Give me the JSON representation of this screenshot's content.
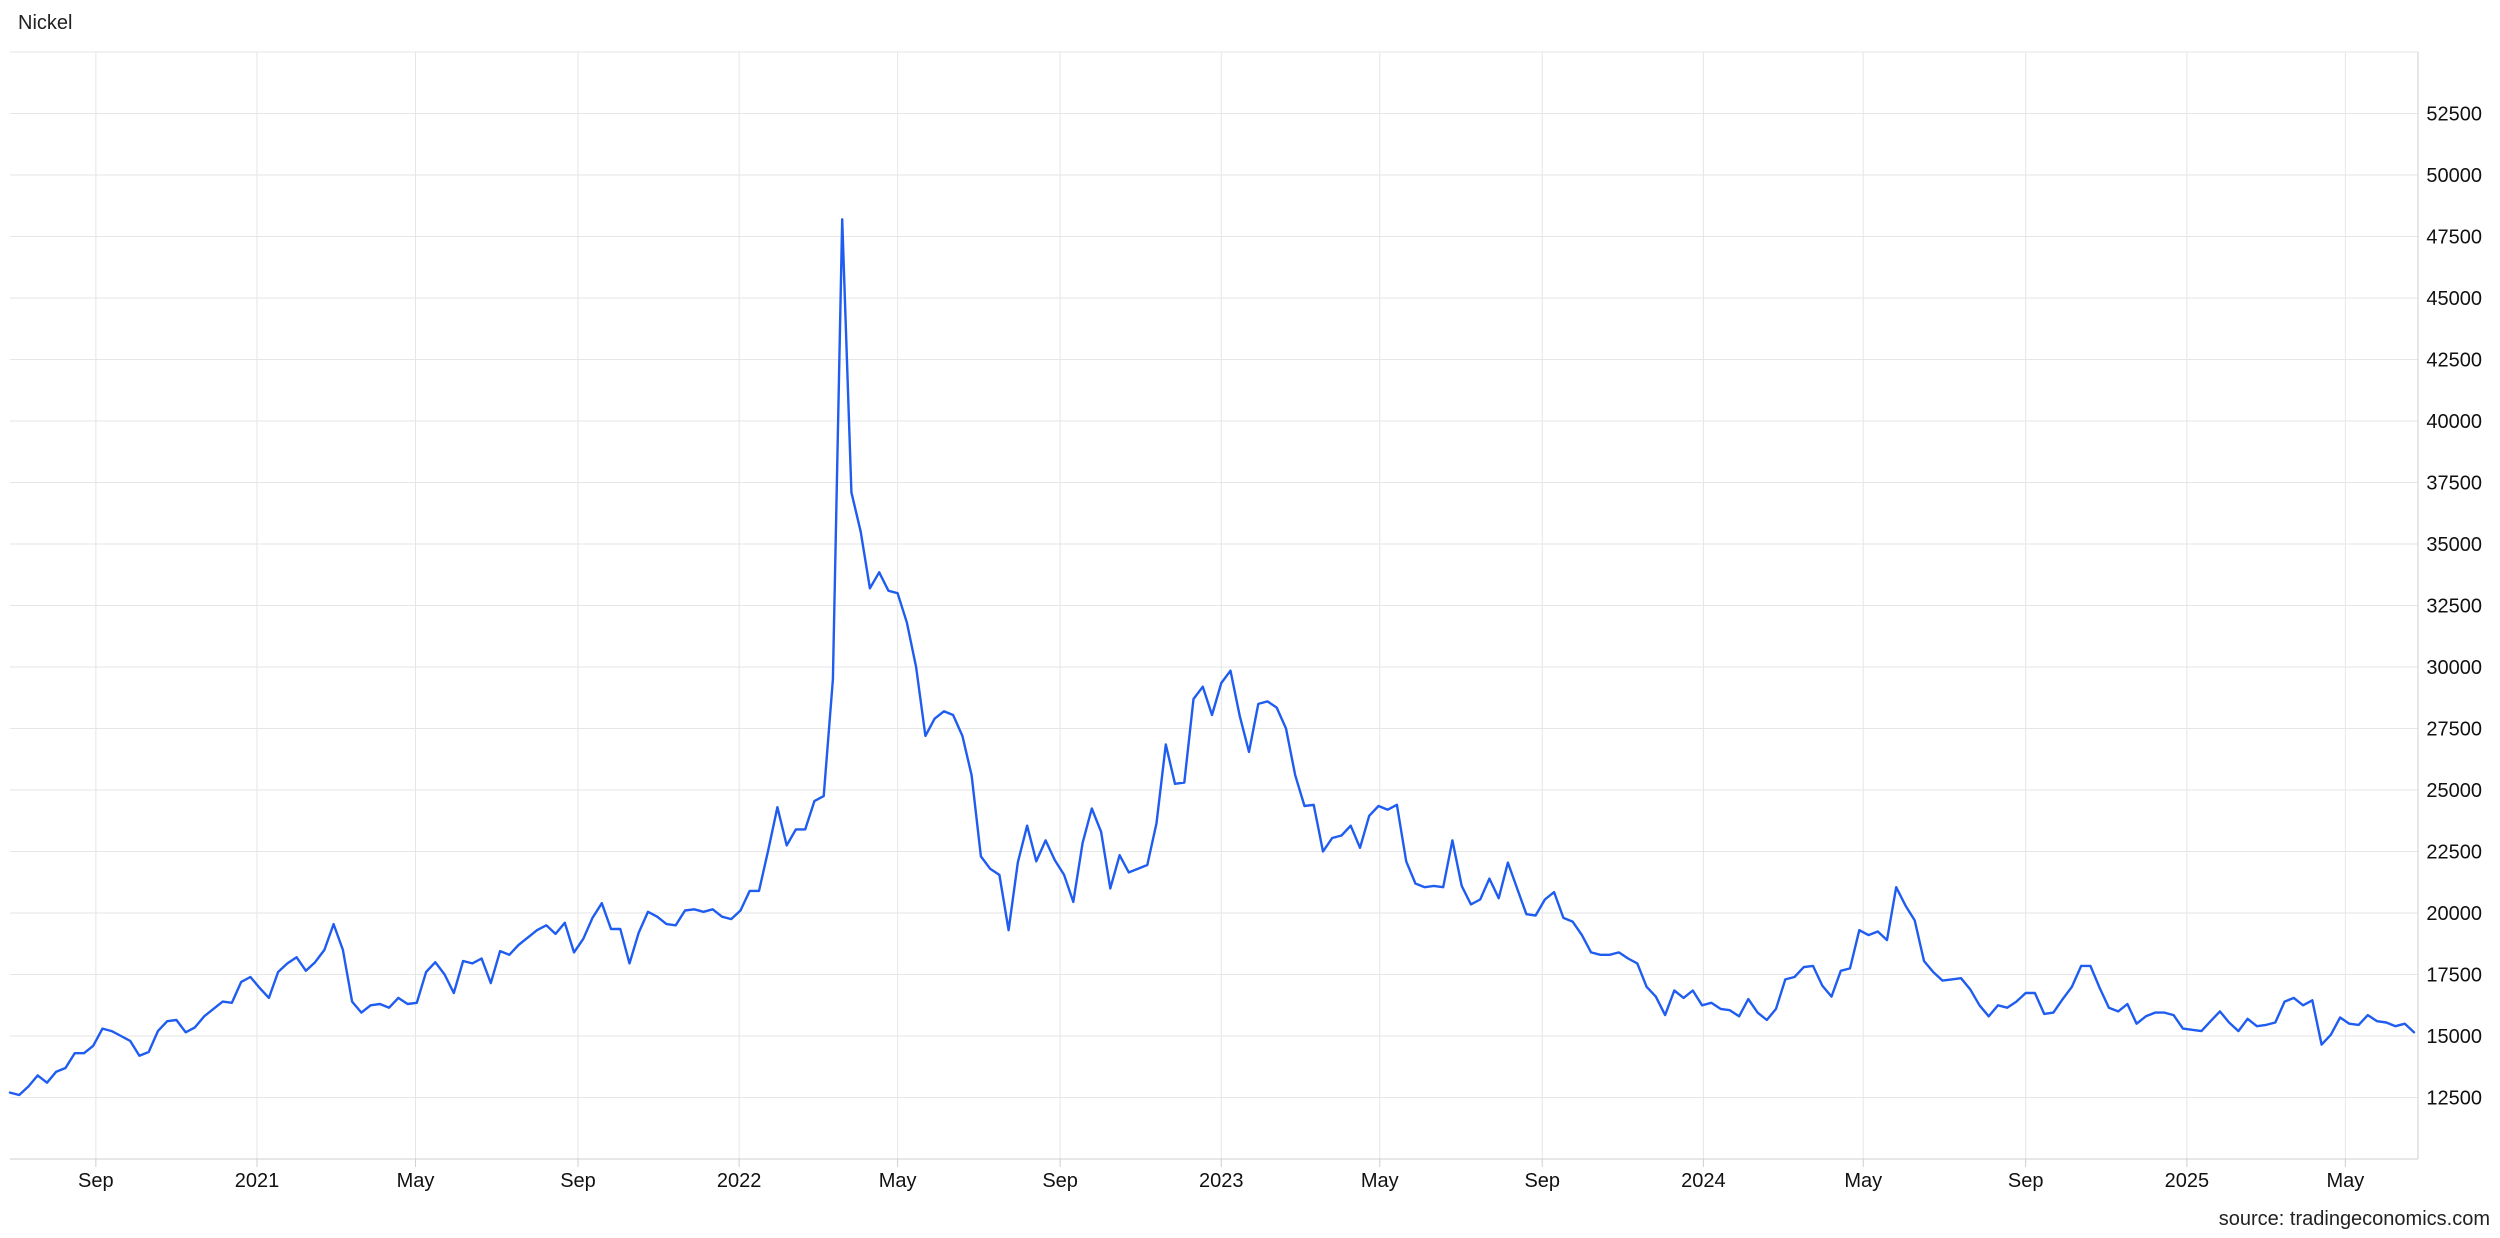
{
  "title": "Nickel",
  "source": "source: tradingeconomics.com",
  "colors": {
    "line": "#1f5cf0",
    "grid": "#e6e6e6",
    "axis": "#cfcfcf"
  },
  "chart_data": {
    "type": "line",
    "title": "Nickel",
    "xlabel": "",
    "ylabel": "",
    "x_range": [
      "2020-06-28",
      "2025-06-25"
    ],
    "ylim": [
      10000,
      55000
    ],
    "grid": true,
    "y_axis_side": "right",
    "y_ticks": [
      12500,
      15000,
      17500,
      20000,
      22500,
      25000,
      27500,
      30000,
      32500,
      35000,
      37500,
      40000,
      42500,
      45000,
      47500,
      50000,
      52500
    ],
    "x_ticks": [
      {
        "date": "2020-09-01",
        "label": "Sep"
      },
      {
        "date": "2021-01-01",
        "label": "2021"
      },
      {
        "date": "2021-05-01",
        "label": "May"
      },
      {
        "date": "2021-09-01",
        "label": "Sep"
      },
      {
        "date": "2022-01-01",
        "label": "2022"
      },
      {
        "date": "2022-05-01",
        "label": "May"
      },
      {
        "date": "2022-09-01",
        "label": "Sep"
      },
      {
        "date": "2023-01-01",
        "label": "2023"
      },
      {
        "date": "2023-05-01",
        "label": "May"
      },
      {
        "date": "2023-09-01",
        "label": "Sep"
      },
      {
        "date": "2024-01-01",
        "label": "2024"
      },
      {
        "date": "2024-05-01",
        "label": "May"
      },
      {
        "date": "2024-09-01",
        "label": "Sep"
      },
      {
        "date": "2025-01-01",
        "label": "2025"
      },
      {
        "date": "2025-05-01",
        "label": "May"
      }
    ],
    "series": [
      {
        "name": "",
        "x": [
          "2020-06-28",
          "2020-07-05",
          "2020-07-12",
          "2020-07-19",
          "2020-07-26",
          "2020-08-02",
          "2020-08-09",
          "2020-08-16",
          "2020-08-23",
          "2020-08-30",
          "2020-09-06",
          "2020-09-13",
          "2020-09-20",
          "2020-09-27",
          "2020-10-04",
          "2020-10-11",
          "2020-10-18",
          "2020-10-25",
          "2020-11-01",
          "2020-11-08",
          "2020-11-15",
          "2020-11-22",
          "2020-11-29",
          "2020-12-06",
          "2020-12-13",
          "2020-12-20",
          "2020-12-27",
          "2021-01-03",
          "2021-01-10",
          "2021-01-17",
          "2021-01-24",
          "2021-01-31",
          "2021-02-07",
          "2021-02-14",
          "2021-02-21",
          "2021-02-28",
          "2021-03-07",
          "2021-03-14",
          "2021-03-21",
          "2021-03-28",
          "2021-04-04",
          "2021-04-11",
          "2021-04-18",
          "2021-04-25",
          "2021-05-02",
          "2021-05-09",
          "2021-05-16",
          "2021-05-23",
          "2021-05-30",
          "2021-06-06",
          "2021-06-13",
          "2021-06-20",
          "2021-06-27",
          "2021-07-04",
          "2021-07-11",
          "2021-07-18",
          "2021-07-25",
          "2021-08-01",
          "2021-08-08",
          "2021-08-15",
          "2021-08-22",
          "2021-08-29",
          "2021-09-05",
          "2021-09-12",
          "2021-09-19",
          "2021-09-26",
          "2021-10-03",
          "2021-10-10",
          "2021-10-17",
          "2021-10-24",
          "2021-10-31",
          "2021-11-07",
          "2021-11-14",
          "2021-11-21",
          "2021-11-28",
          "2021-12-05",
          "2021-12-12",
          "2021-12-19",
          "2021-12-26",
          "2022-01-02",
          "2022-01-09",
          "2022-01-16",
          "2022-01-23",
          "2022-01-30",
          "2022-02-06",
          "2022-02-13",
          "2022-02-20",
          "2022-02-27",
          "2022-03-06",
          "2022-03-13",
          "2022-03-20",
          "2022-03-27",
          "2022-04-03",
          "2022-04-10",
          "2022-04-17",
          "2022-04-24",
          "2022-05-01",
          "2022-05-08",
          "2022-05-15",
          "2022-05-22",
          "2022-05-29",
          "2022-06-05",
          "2022-06-12",
          "2022-06-19",
          "2022-06-26",
          "2022-07-03",
          "2022-07-10",
          "2022-07-17",
          "2022-07-24",
          "2022-07-31",
          "2022-08-07",
          "2022-08-14",
          "2022-08-21",
          "2022-08-28",
          "2022-09-04",
          "2022-09-11",
          "2022-09-18",
          "2022-09-25",
          "2022-10-02",
          "2022-10-09",
          "2022-10-16",
          "2022-10-23",
          "2022-10-30",
          "2022-11-06",
          "2022-11-13",
          "2022-11-20",
          "2022-11-27",
          "2022-12-04",
          "2022-12-11",
          "2022-12-18",
          "2022-12-25",
          "2023-01-01",
          "2023-01-08",
          "2023-01-15",
          "2023-01-22",
          "2023-01-29",
          "2023-02-05",
          "2023-02-12",
          "2023-02-19",
          "2023-02-26",
          "2023-03-05",
          "2023-03-12",
          "2023-03-19",
          "2023-03-26",
          "2023-04-02",
          "2023-04-09",
          "2023-04-16",
          "2023-04-23",
          "2023-04-30",
          "2023-05-07",
          "2023-05-14",
          "2023-05-21",
          "2023-05-28",
          "2023-06-04",
          "2023-06-11",
          "2023-06-18",
          "2023-06-25",
          "2023-07-02",
          "2023-07-09",
          "2023-07-16",
          "2023-07-23",
          "2023-07-30",
          "2023-08-06",
          "2023-08-13",
          "2023-08-20",
          "2023-08-27",
          "2023-09-03",
          "2023-09-10",
          "2023-09-17",
          "2023-09-24",
          "2023-10-01",
          "2023-10-08",
          "2023-10-15",
          "2023-10-22",
          "2023-10-29",
          "2023-11-05",
          "2023-11-12",
          "2023-11-19",
          "2023-11-26",
          "2023-12-03",
          "2023-12-10",
          "2023-12-17",
          "2023-12-24",
          "2023-12-31",
          "2024-01-07",
          "2024-01-14",
          "2024-01-21",
          "2024-01-28",
          "2024-02-04",
          "2024-02-11",
          "2024-02-18",
          "2024-02-25",
          "2024-03-03",
          "2024-03-10",
          "2024-03-17",
          "2024-03-24",
          "2024-03-31",
          "2024-04-07",
          "2024-04-14",
          "2024-04-21",
          "2024-04-28",
          "2024-05-05",
          "2024-05-12",
          "2024-05-19",
          "2024-05-26",
          "2024-06-02",
          "2024-06-09",
          "2024-06-16",
          "2024-06-23",
          "2024-06-30",
          "2024-07-07",
          "2024-07-14",
          "2024-07-21",
          "2024-07-28",
          "2024-08-04",
          "2024-08-11",
          "2024-08-18",
          "2024-08-25",
          "2024-09-01",
          "2024-09-08",
          "2024-09-15",
          "2024-09-22",
          "2024-09-29",
          "2024-10-06",
          "2024-10-13",
          "2024-10-20",
          "2024-10-27",
          "2024-11-03",
          "2024-11-10",
          "2024-11-17",
          "2024-11-24",
          "2024-12-01",
          "2024-12-08",
          "2024-12-15",
          "2024-12-22",
          "2024-12-29",
          "2025-01-05",
          "2025-01-12",
          "2025-01-19",
          "2025-01-26",
          "2025-02-02",
          "2025-02-09",
          "2025-02-16",
          "2025-02-23",
          "2025-03-02",
          "2025-03-09",
          "2025-03-16",
          "2025-03-23",
          "2025-03-30",
          "2025-04-06",
          "2025-04-13",
          "2025-04-20",
          "2025-04-27",
          "2025-05-04",
          "2025-05-11",
          "2025-05-18",
          "2025-05-25",
          "2025-06-01",
          "2025-06-08",
          "2025-06-15",
          "2025-06-22"
        ],
        "y": [
          12700,
          12600,
          12950,
          13400,
          13100,
          13550,
          13700,
          14300,
          14300,
          14600,
          15300,
          15200,
          15000,
          14800,
          14200,
          14350,
          15200,
          15600,
          15650,
          15150,
          15350,
          15800,
          16100,
          16400,
          16350,
          17200,
          17400,
          16950,
          16550,
          17600,
          17950,
          18200,
          17650,
          18000,
          18500,
          19550,
          18500,
          16400,
          15950,
          16250,
          16300,
          16150,
          16550,
          16300,
          16350,
          17600,
          18000,
          17500,
          16750,
          18050,
          17950,
          18150,
          17150,
          18450,
          18300,
          18700,
          19000,
          19300,
          19500,
          19150,
          19600,
          18400,
          18950,
          19800,
          20400,
          19350,
          19350,
          17950,
          19200,
          20050,
          19850,
          19550,
          19500,
          20100,
          20150,
          20050,
          20150,
          19850,
          19750,
          20100,
          20900,
          20900,
          22550,
          24300,
          22750,
          23400,
          23400,
          24550,
          24750,
          29500,
          48200,
          37100,
          35500,
          33200,
          33850,
          33100,
          33000,
          31800,
          30000,
          27200,
          27900,
          28200,
          28050,
          27200,
          25600,
          22300,
          21800,
          21550,
          19300,
          22050,
          23550,
          22100,
          22950,
          22150,
          21550,
          20450,
          22850,
          24250,
          23300,
          21000,
          22350,
          21650,
          21800,
          21950,
          23650,
          26850,
          25250,
          25300,
          28700,
          29200,
          28050,
          29350,
          29850,
          28000,
          26550,
          28500,
          28600,
          28350,
          27500,
          25600,
          24350,
          24400,
          22500,
          23050,
          23150,
          23550,
          22650,
          23950,
          24350,
          24200,
          24400,
          22100,
          21200,
          21050,
          21100,
          21050,
          22950,
          21100,
          20350,
          20550,
          21400,
          20600,
          22050,
          21000,
          19950,
          19900,
          20550,
          20850,
          19800,
          19650,
          19100,
          18400,
          18300,
          18300,
          18400,
          18150,
          17950,
          17000,
          16600,
          15850,
          16850,
          16550,
          16850,
          16250,
          16350,
          16100,
          16050,
          15800,
          16500,
          15950,
          15650,
          16100,
          17300,
          17400,
          17800,
          17850,
          17050,
          16600,
          17650,
          17750,
          19300,
          19100,
          19250,
          18900,
          21050,
          20300,
          19700,
          18050,
          17600,
          17250,
          17300,
          17350,
          16900,
          16250,
          15800,
          16250,
          16150,
          16400,
          16750,
          16750,
          15900,
          15950,
          16500,
          17000,
          17850,
          17850,
          16950,
          16150,
          16000,
          16300,
          15500,
          15800,
          15950,
          15950,
          15850,
          15300,
          15250,
          15200,
          15600,
          16000,
          15550,
          15200,
          15700,
          15400,
          15450,
          15550,
          16400,
          16550,
          16250,
          16450,
          14650,
          15050,
          15750,
          15500,
          15450,
          15850,
          15600,
          15550,
          15400,
          15500,
          15150
        ]
      }
    ]
  }
}
